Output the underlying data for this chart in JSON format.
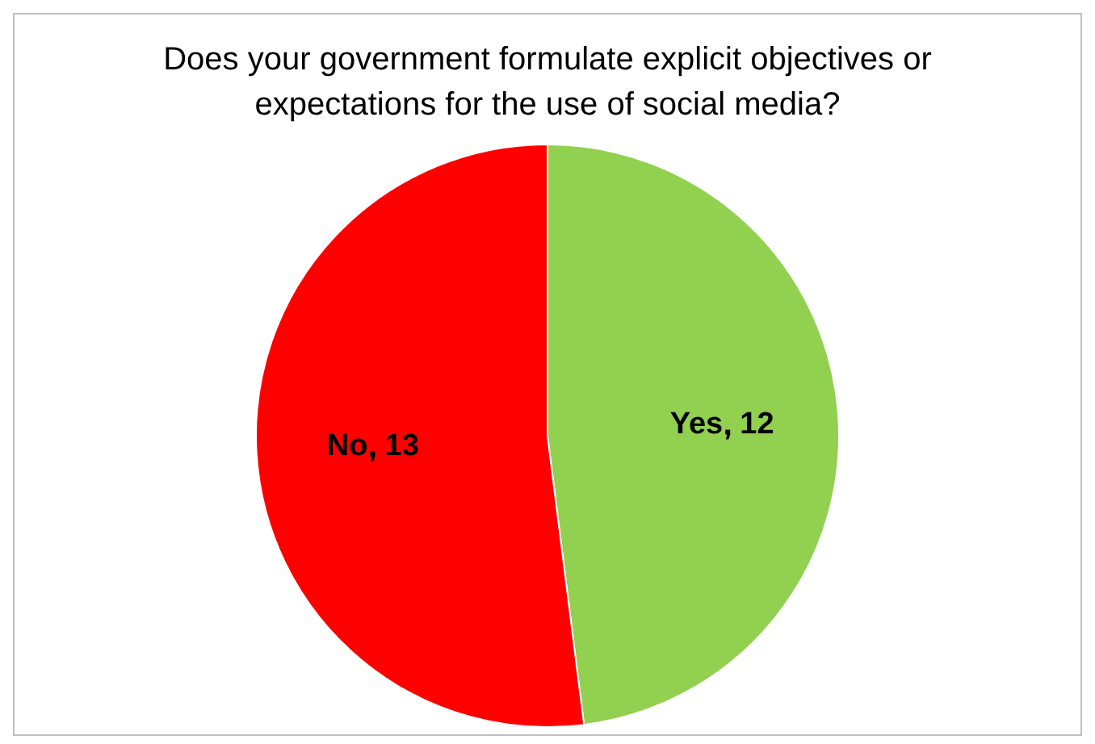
{
  "chart_data": {
    "type": "pie",
    "title": "Does your government formulate explicit objectives or expectations for the use of social media?",
    "categories": [
      "Yes",
      "No"
    ],
    "values": [
      12,
      13
    ],
    "colors": [
      "#92d050",
      "#ff0000"
    ],
    "data_labels": true
  }
}
